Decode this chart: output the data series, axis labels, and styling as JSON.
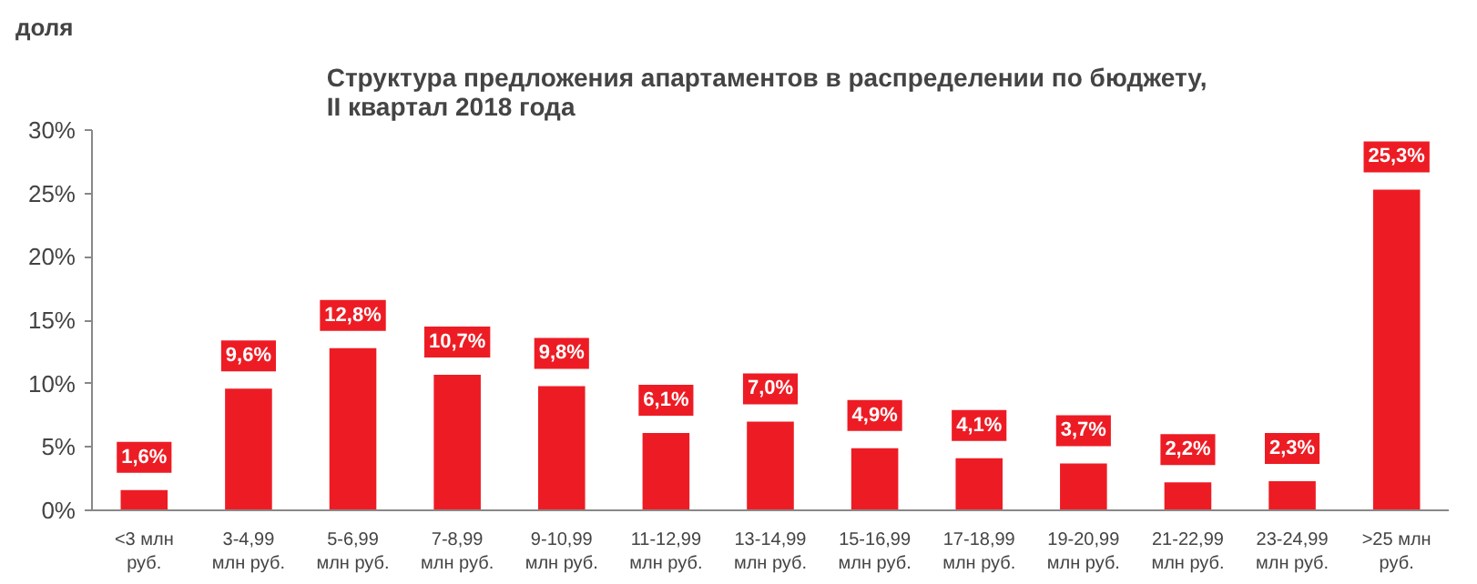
{
  "chart_data": {
    "type": "bar",
    "title": "Структура  предложения апартаментов в распределении по бюджету,\nII квартал 2018 года",
    "ylabel": "доля",
    "categories": [
      "<3 млн\nруб.",
      "3-4,99\nмлн руб.",
      "5-6,99\nмлн руб.",
      "7-8,99\nмлн руб.",
      "9-10,99\nмлн руб.",
      "11-12,99\nмлн руб.",
      "13-14,99\nмлн руб.",
      "15-16,99\nмлн руб.",
      "17-18,99\nмлн руб.",
      "19-20,99\nмлн руб.",
      "21-22,99\nмлн руб.",
      "23-24,99\nмлн руб.",
      ">25 млн\nруб."
    ],
    "values": [
      1.6,
      9.6,
      12.8,
      10.7,
      9.8,
      6.1,
      7.0,
      4.9,
      4.1,
      3.7,
      2.2,
      2.3,
      25.3
    ],
    "value_labels": [
      "1,6%",
      "9,6%",
      "12,8%",
      "10,7%",
      "9,8%",
      "6,1%",
      "7,0%",
      "4,9%",
      "4,1%",
      "3,7%",
      "2,2%",
      "2,3%",
      "25,3%"
    ],
    "color": "#ed1c24",
    "ylim": [
      0,
      30
    ],
    "yticks": [
      {
        "value": 0,
        "label": "0%"
      },
      {
        "value": 5,
        "label": "5%"
      },
      {
        "value": 10,
        "label": "10%"
      },
      {
        "value": 15,
        "label": "15%"
      },
      {
        "value": 20,
        "label": "20%"
      },
      {
        "value": 25,
        "label": "25%"
      },
      {
        "value": 30,
        "label": "30%"
      }
    ],
    "grid": false
  }
}
